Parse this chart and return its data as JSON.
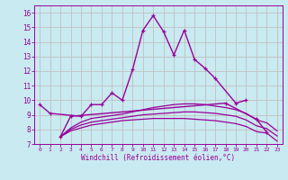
{
  "xlabel": "Windchill (Refroidissement éolien,°C)",
  "background_color": "#c8eaf0",
  "grid_color": "#c0c0c0",
  "line_color": "#990099",
  "xlim": [
    -0.5,
    23.5
  ],
  "ylim": [
    7,
    16.5
  ],
  "yticks": [
    7,
    8,
    9,
    10,
    11,
    12,
    13,
    14,
    15,
    16
  ],
  "xticks": [
    0,
    1,
    2,
    3,
    4,
    5,
    6,
    7,
    8,
    9,
    10,
    11,
    12,
    13,
    14,
    15,
    16,
    17,
    18,
    19,
    20,
    21,
    22,
    23
  ],
  "series": [
    {
      "x": [
        0,
        1,
        4,
        5,
        6,
        7,
        8,
        9,
        10,
        11,
        12,
        13,
        14,
        15,
        16,
        17,
        19,
        20
      ],
      "y": [
        9.7,
        9.1,
        8.9,
        9.7,
        9.7,
        10.5,
        10.0,
        12.1,
        14.8,
        15.8,
        14.7,
        13.1,
        14.8,
        12.8,
        12.2,
        11.5,
        9.8,
        10.0
      ],
      "marker": "+",
      "lw": 1.0
    },
    {
      "x": [
        2,
        3,
        18,
        21,
        22
      ],
      "y": [
        7.5,
        8.9,
        9.8,
        8.7,
        7.8
      ],
      "marker": "+",
      "lw": 1.0
    },
    {
      "x": [
        2,
        3,
        4,
        5,
        6,
        7,
        8,
        9,
        10,
        11,
        12,
        13,
        14,
        15,
        16,
        17,
        18,
        19,
        20,
        21,
        22,
        23
      ],
      "y": [
        7.5,
        7.9,
        8.1,
        8.3,
        8.4,
        8.5,
        8.6,
        8.65,
        8.7,
        8.75,
        8.75,
        8.75,
        8.75,
        8.7,
        8.65,
        8.6,
        8.5,
        8.4,
        8.2,
        7.85,
        7.75,
        7.2
      ],
      "marker": null,
      "lw": 0.9
    },
    {
      "x": [
        2,
        3,
        4,
        5,
        6,
        7,
        8,
        9,
        10,
        11,
        12,
        13,
        14,
        15,
        16,
        17,
        18,
        19,
        20,
        21,
        22,
        23
      ],
      "y": [
        7.5,
        8.0,
        8.3,
        8.5,
        8.6,
        8.7,
        8.8,
        8.9,
        9.0,
        9.05,
        9.1,
        9.15,
        9.2,
        9.2,
        9.15,
        9.1,
        9.0,
        8.9,
        8.65,
        8.25,
        8.05,
        7.55
      ],
      "marker": null,
      "lw": 0.9
    },
    {
      "x": [
        2,
        3,
        4,
        5,
        6,
        7,
        8,
        9,
        10,
        11,
        12,
        13,
        14,
        15,
        16,
        17,
        18,
        19,
        20,
        21,
        22,
        23
      ],
      "y": [
        7.5,
        8.1,
        8.5,
        8.75,
        8.85,
        8.95,
        9.05,
        9.2,
        9.35,
        9.5,
        9.6,
        9.7,
        9.75,
        9.75,
        9.7,
        9.6,
        9.5,
        9.35,
        9.1,
        8.65,
        8.45,
        7.9
      ],
      "marker": null,
      "lw": 0.9
    }
  ]
}
